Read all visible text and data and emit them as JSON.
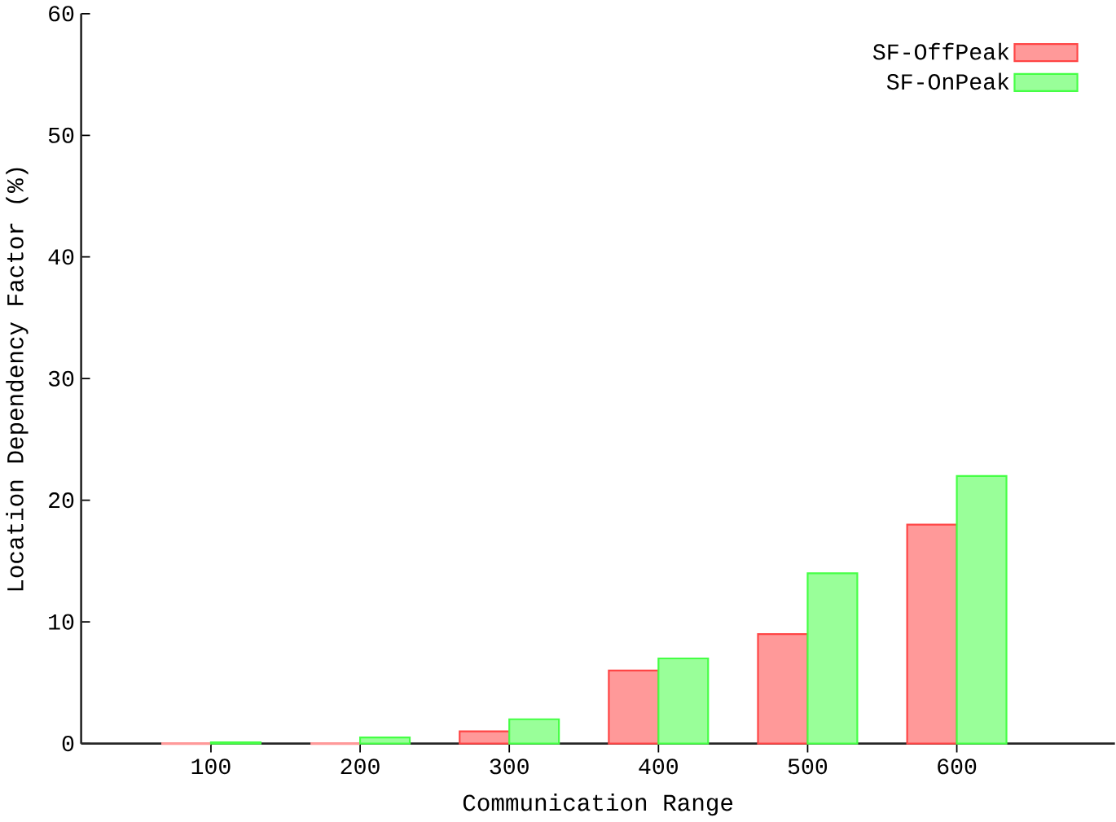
{
  "chart_data": {
    "type": "bar",
    "xlabel": "Communication Range",
    "ylabel": "Location Dependency Factor (%)",
    "categories": [
      "100",
      "200",
      "300",
      "400",
      "500",
      "600"
    ],
    "series": [
      {
        "name": "SF-OffPeak",
        "color": "#ff9999",
        "values": [
          0,
          0,
          1,
          6,
          9,
          18
        ]
      },
      {
        "name": "SF-OnPeak",
        "color": "#99ff99",
        "values": [
          0.1,
          0.5,
          2,
          7,
          14,
          22
        ]
      }
    ],
    "ylim": [
      0,
      60
    ],
    "yticks": [
      0,
      10,
      20,
      30,
      40,
      50,
      60
    ],
    "grid": false,
    "legend": "top right"
  }
}
